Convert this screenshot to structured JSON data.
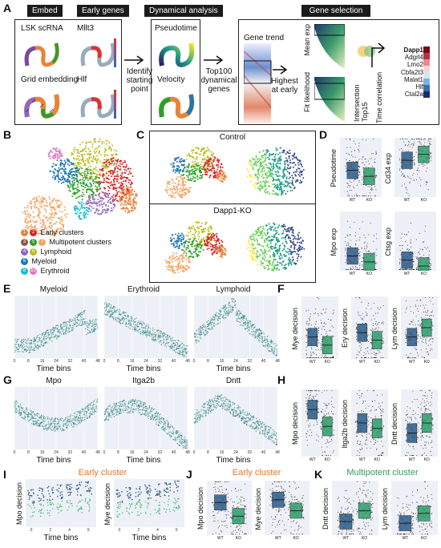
{
  "panels": {
    "A": "A",
    "B": "B",
    "C": "C",
    "D": "D",
    "E": "E",
    "F": "F",
    "G": "G",
    "H": "H",
    "I": "I",
    "J": "J",
    "K": "K"
  },
  "panelA": {
    "headers": {
      "embed": "Embed",
      "early_genes": "Early genes",
      "dynamical": "Dynamical analysis",
      "gene_selection": "Gene selection"
    },
    "lsk": "LSK scRNA",
    "mllt3": "Mllt3",
    "grid": "Grid embedding",
    "hlf": "Hlf",
    "pseudotime": "Pseudotime",
    "velocity": "Velocity",
    "identify": "Identify\nstarting\npoint",
    "top100": "Top100\ndynamical\ngenes",
    "gene_trend": "Gene trend",
    "highest": "Highest\nat early",
    "mean_exp": "Mean exp",
    "fit": "Fit likelihood",
    "intersection": "Intersection\nTop15",
    "time_corr": "Time correlation",
    "genes": [
      "Dapp1",
      "Adgrl4",
      "Lmo2",
      "Cbfa2t3",
      "Malat1",
      "Hlf",
      "Ctal2a"
    ]
  },
  "panelB": {
    "legend": [
      {
        "nums": [
          "1",
          "2"
        ],
        "colors": [
          "#e8833a",
          "#d62728"
        ],
        "label": "Early clusters"
      },
      {
        "nums": [
          "3",
          "5",
          "7"
        ],
        "colors": [
          "#8c564b",
          "#2ca02c",
          "#f4a460"
        ],
        "label": "Multipotent clusters"
      },
      {
        "nums": [
          "4",
          "9"
        ],
        "colors": [
          "#9467bd",
          "#bcbd22"
        ],
        "label": "Lymphoid"
      },
      {
        "nums": [
          "6"
        ],
        "colors": [
          "#1f77b4"
        ],
        "label": "Myeloid"
      },
      {
        "nums": [
          "8",
          "10"
        ],
        "colors": [
          "#17becf",
          "#e377c2"
        ],
        "label": "Erythroid"
      }
    ]
  },
  "panelC": {
    "control": "Control",
    "ko": "Dapp1-KO"
  },
  "panelD": {
    "plots": [
      {
        "ylabel": "Pseudotime",
        "wt_color": "#2c5d8a",
        "ko_color": "#2e9e6b"
      },
      {
        "ylabel": "Cd34 exp",
        "wt_color": "#2c5d8a",
        "ko_color": "#2e9e6b"
      },
      {
        "ylabel": "Mpo exp",
        "wt_color": "#2c5d8a",
        "ko_color": "#2e9e6b"
      },
      {
        "ylabel": "Ctsg exp",
        "wt_color": "#2c5d8a",
        "ko_color": "#2e9e6b"
      }
    ],
    "wt": "WT",
    "ko": "KO"
  },
  "panelE": {
    "titles": [
      "Myeloid",
      "Erythroid",
      "Lymphoid"
    ],
    "xlabel": "Time bins",
    "xticks": [
      "0",
      "8",
      "16",
      "24",
      "32",
      "40",
      "48"
    ]
  },
  "panelF": {
    "ylabels": [
      "Mye decision",
      "Ery decision",
      "Lym decision"
    ],
    "wt": "WT",
    "ko": "KO"
  },
  "panelG": {
    "titles": [
      "Mpo",
      "Itga2b",
      "Dntt"
    ],
    "xlabel": "Time bins",
    "xticks": [
      "0",
      "8",
      "16",
      "24",
      "32",
      "40",
      "48"
    ]
  },
  "panelH": {
    "ylabels": [
      "Mpo decision",
      "Itga2b decision",
      "Dntt decision"
    ],
    "wt": "WT",
    "ko": "KO"
  },
  "panelI": {
    "title": "Early cluster",
    "ylabels": [
      "Mpo decision",
      "Mye decision"
    ],
    "xlabel": "Time bins",
    "xticks": [
      "0",
      "2",
      "4",
      "6"
    ]
  },
  "panelJ": {
    "title": "Early cluster",
    "ylabels": [
      "Mpo decision",
      "Mye decision"
    ],
    "wt": "WT",
    "ko": "KO"
  },
  "panelK": {
    "title": "Multipotent cluster",
    "ylabels": [
      "Dntt decision",
      "Lym decision"
    ],
    "wt": "WT",
    "ko": "KO"
  },
  "colors": {
    "wt": "#2c5d8a",
    "ko": "#2e9e6b",
    "accent_orange": "#e87722",
    "accent_green": "#2e9e5b",
    "panel_bg": "#eef0f7"
  }
}
